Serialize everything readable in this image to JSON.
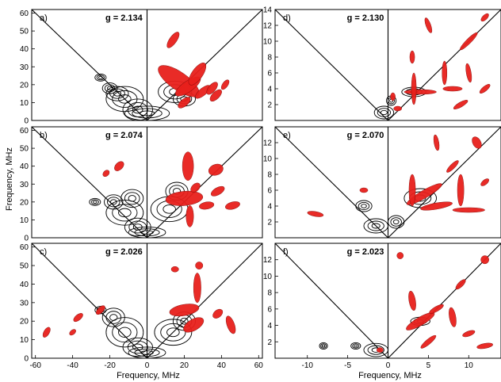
{
  "chart_data": [
    {
      "type": "contour",
      "panel": "a)",
      "g_label": "g = 2.134",
      "xlim": [
        -62,
        62
      ],
      "ylim": [
        0,
        62
      ],
      "ytick_labels": [
        "0",
        "10",
        "20",
        "30",
        "40",
        "50",
        "60"
      ],
      "xtick_labels": [],
      "red": [
        [
          17,
          22,
          13,
          5,
          35
        ],
        [
          22,
          19,
          8,
          3,
          -35
        ],
        [
          30,
          16,
          5,
          2,
          -40
        ],
        [
          27,
          26,
          7,
          3,
          -55
        ],
        [
          37,
          14,
          4,
          2,
          -45
        ],
        [
          14,
          45,
          5,
          2,
          -55
        ],
        [
          35,
          18,
          4,
          2,
          -50
        ],
        [
          42,
          20,
          3,
          1.5,
          -55
        ],
        [
          20,
          10,
          4,
          2,
          -40
        ]
      ],
      "black": [
        [
          -12,
          12,
          10,
          7
        ],
        [
          -5,
          6,
          8,
          6
        ],
        [
          -20,
          18,
          4,
          3
        ],
        [
          -25,
          24,
          3,
          2
        ],
        [
          -16,
          15,
          6,
          4
        ],
        [
          15,
          16,
          9,
          6
        ],
        [
          20,
          12,
          6,
          4
        ],
        [
          0,
          4,
          12,
          4
        ]
      ]
    },
    {
      "type": "contour",
      "panel": "b)",
      "g_label": "g = 2.074",
      "xlim": [
        -62,
        62
      ],
      "ylim": [
        0,
        62
      ],
      "ytick_labels": [
        "0",
        "10",
        "20",
        "30",
        "40",
        "50",
        "60"
      ],
      "xtick_labels": [],
      "red": [
        [
          20,
          22,
          10,
          4,
          -5
        ],
        [
          22,
          40,
          3,
          8,
          0
        ],
        [
          37,
          38,
          4,
          3,
          -20
        ],
        [
          32,
          18,
          4,
          2,
          -10
        ],
        [
          23,
          12,
          2,
          6,
          0
        ],
        [
          46,
          18,
          4,
          2,
          -15
        ],
        [
          -15,
          40,
          3,
          2,
          -45
        ],
        [
          -22,
          36,
          2,
          1.5,
          -45
        ],
        [
          38,
          26,
          4,
          2,
          -30
        ],
        [
          26,
          28,
          3,
          2,
          -45
        ]
      ],
      "black": [
        [
          -12,
          14,
          10,
          7
        ],
        [
          -8,
          22,
          6,
          5
        ],
        [
          -18,
          20,
          5,
          4
        ],
        [
          -28,
          20,
          3,
          2
        ],
        [
          12,
          16,
          10,
          7
        ],
        [
          16,
          26,
          6,
          5
        ],
        [
          -5,
          6,
          7,
          5
        ],
        [
          0,
          3,
          10,
          3
        ]
      ]
    },
    {
      "type": "contour",
      "panel": "c)",
      "g_label": "g = 2.026",
      "xlim": [
        -62,
        62
      ],
      "ylim": [
        0,
        62
      ],
      "ytick_labels": [
        "0",
        "10",
        "20",
        "30",
        "40",
        "50",
        "60"
      ],
      "xtick_labels": [
        "-60",
        "-40",
        "-20",
        "0",
        "20",
        "40",
        "60"
      ],
      "xlabel": "Frequency, MHz",
      "red": [
        [
          20,
          26,
          8,
          3,
          -10
        ],
        [
          25,
          18,
          6,
          3,
          -30
        ],
        [
          27,
          38,
          2,
          8,
          0
        ],
        [
          38,
          24,
          3,
          2,
          -40
        ],
        [
          45,
          18,
          2,
          5,
          -20
        ],
        [
          -25,
          26,
          3,
          1.5,
          -45
        ],
        [
          -37,
          22,
          3,
          1.5,
          -40
        ],
        [
          -54,
          14,
          3,
          1.5,
          -60
        ],
        [
          -40,
          14,
          2,
          1.2,
          -40
        ],
        [
          15,
          48,
          2,
          1.5,
          0
        ],
        [
          28,
          50,
          2,
          2,
          0
        ]
      ],
      "black": [
        [
          -12,
          14,
          10,
          8
        ],
        [
          -18,
          22,
          6,
          5
        ],
        [
          -25,
          26,
          3,
          2
        ],
        [
          14,
          14,
          10,
          7
        ],
        [
          20,
          20,
          6,
          5
        ],
        [
          -5,
          6,
          8,
          5
        ],
        [
          0,
          3,
          10,
          3
        ]
      ]
    },
    {
      "type": "contour",
      "panel": "d)",
      "g_label": "g = 2.130",
      "xlim": [
        -14,
        14
      ],
      "ylim": [
        0,
        14
      ],
      "ytick_labels": [
        "2",
        "4",
        "6",
        "8",
        "10",
        "12",
        "14"
      ],
      "xtick_labels": [],
      "red": [
        [
          4,
          3.6,
          2,
          0.3,
          0
        ],
        [
          3.2,
          4,
          0.3,
          2,
          0
        ],
        [
          8,
          4,
          1.2,
          0.3,
          0
        ],
        [
          7,
          6,
          0.3,
          1.5,
          0
        ],
        [
          10,
          10,
          1.5,
          0.3,
          -45
        ],
        [
          12,
          13,
          0.6,
          0.3,
          -45
        ],
        [
          9,
          2,
          1,
          0.3,
          -30
        ],
        [
          5,
          12,
          0.3,
          1,
          -20
        ],
        [
          12,
          4,
          0.8,
          0.3,
          -40
        ],
        [
          1.2,
          1.5,
          0.5,
          0.3,
          0
        ],
        [
          0.6,
          3,
          0.3,
          0.5,
          0
        ],
        [
          3,
          8,
          0.3,
          0.8,
          0
        ],
        [
          10,
          6,
          0.3,
          1.2,
          -10
        ]
      ],
      "black": [
        [
          -0.5,
          1,
          1.2,
          0.8
        ],
        [
          3.2,
          3.6,
          1.5,
          0.6
        ],
        [
          0.4,
          2.5,
          0.6,
          0.6
        ]
      ]
    },
    {
      "type": "contour",
      "panel": "e)",
      "g_label": "g = 2.070",
      "xlim": [
        -14,
        14
      ],
      "ylim": [
        0,
        14
      ],
      "ytick_labels": [
        "2",
        "4",
        "6",
        "8",
        "10",
        "12"
      ],
      "xtick_labels": [],
      "red": [
        [
          4.5,
          5.5,
          2.5,
          0.5,
          -30
        ],
        [
          6,
          4,
          2,
          0.4,
          -10
        ],
        [
          3,
          6,
          0.4,
          2,
          0
        ],
        [
          9,
          6,
          0.4,
          2,
          0
        ],
        [
          10,
          3.5,
          2,
          0.3,
          0
        ],
        [
          -9,
          3,
          1,
          0.3,
          10
        ],
        [
          -3,
          6,
          0.5,
          0.3,
          0
        ],
        [
          6,
          12,
          0.3,
          1,
          -10
        ],
        [
          11,
          12,
          0.5,
          0.8,
          -30
        ],
        [
          8,
          9,
          1,
          0.3,
          -45
        ],
        [
          12,
          7,
          0.6,
          0.3,
          -40
        ]
      ],
      "black": [
        [
          -1.5,
          1.5,
          1.5,
          0.9
        ],
        [
          -3,
          4,
          1,
          0.7
        ],
        [
          4,
          5,
          2,
          1.2
        ],
        [
          1,
          2,
          1,
          0.8
        ]
      ]
    },
    {
      "type": "contour",
      "panel": "f)",
      "g_label": "g = 2.023",
      "xlim": [
        -14,
        14
      ],
      "ylim": [
        0,
        14
      ],
      "ytick_labels": [
        "2",
        "4",
        "6",
        "8",
        "10",
        "12"
      ],
      "xtick_labels": [
        "-10",
        "-5",
        "0",
        "5",
        "10"
      ],
      "xlabel": "Frequency, MHz",
      "red": [
        [
          4,
          4.5,
          2,
          0.5,
          -30
        ],
        [
          3,
          7,
          0.4,
          1.2,
          -10
        ],
        [
          6,
          6,
          1,
          0.3,
          -30
        ],
        [
          8,
          5,
          0.4,
          1.2,
          -10
        ],
        [
          10,
          3,
          0.8,
          0.3,
          -20
        ],
        [
          12,
          1.5,
          1,
          0.3,
          -10
        ],
        [
          5,
          2,
          1.2,
          0.3,
          -40
        ],
        [
          9,
          9,
          0.8,
          0.3,
          -45
        ],
        [
          12,
          12,
          0.5,
          0.5,
          0
        ],
        [
          1.5,
          12.5,
          0.4,
          0.4,
          0
        ],
        [
          -1,
          1,
          0.4,
          0.3,
          0
        ]
      ],
      "black": [
        [
          -1.5,
          1,
          1.5,
          0.8
        ],
        [
          -4,
          1.5,
          0.6,
          0.4
        ],
        [
          -8,
          1.5,
          0.5,
          0.4
        ],
        [
          4,
          4.5,
          1.2,
          0.5
        ]
      ]
    }
  ],
  "ylabel": "Frequency, MHz",
  "colors": {
    "red": "#e8201c",
    "black": "#000000"
  }
}
